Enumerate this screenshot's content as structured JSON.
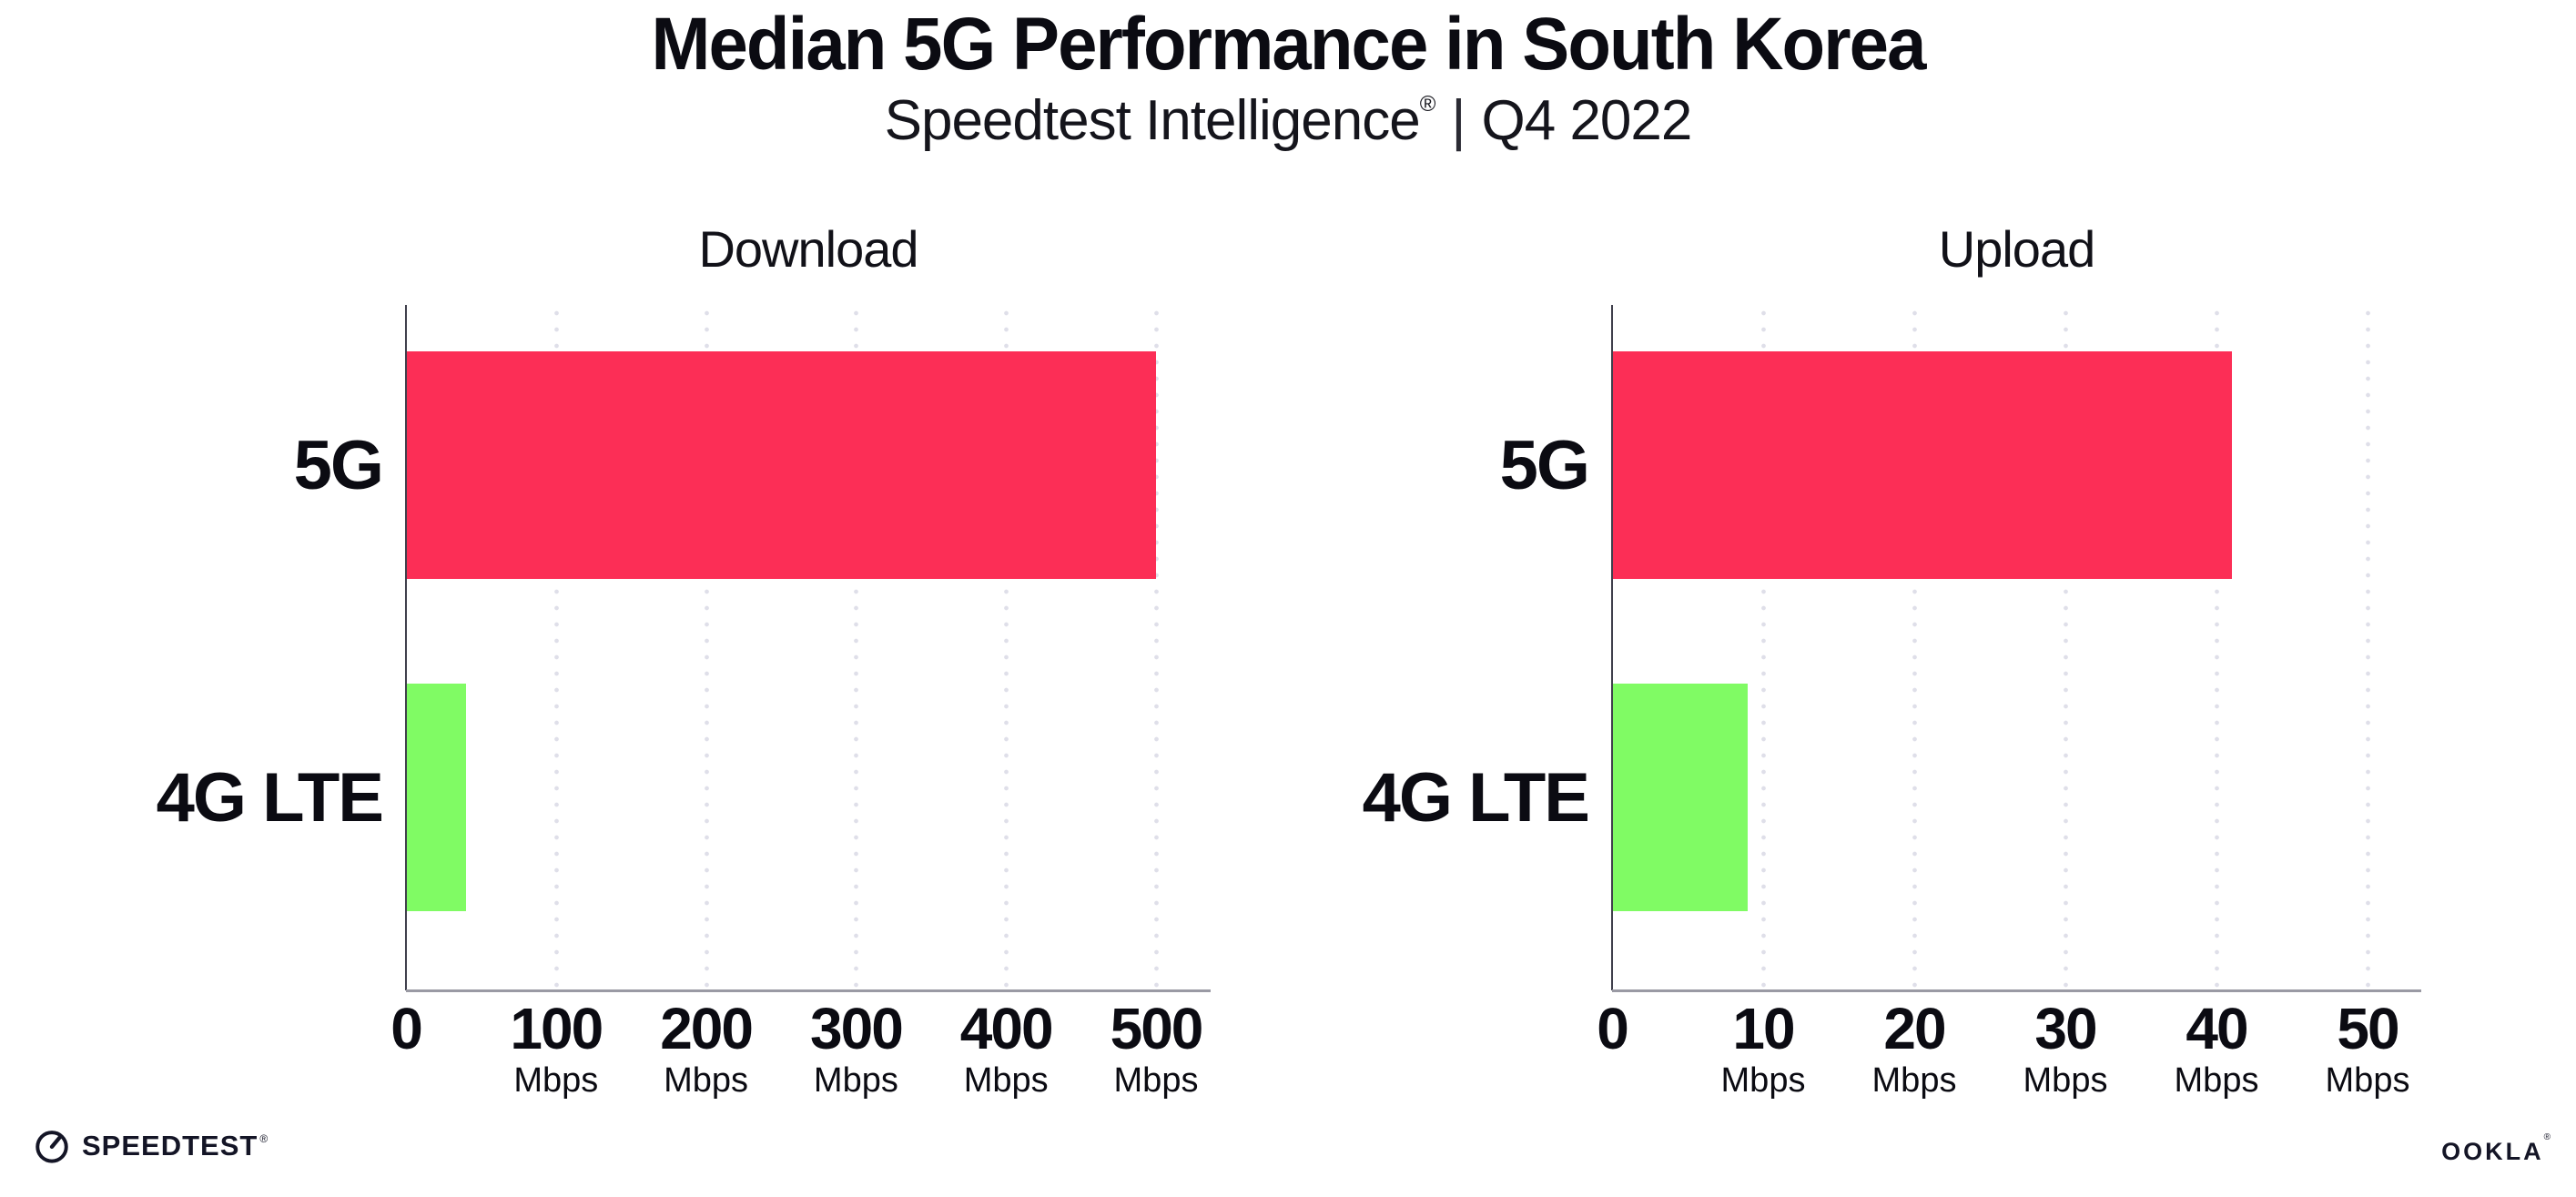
{
  "chart_data": {
    "type": "bar",
    "orientation": "horizontal",
    "title": "Median 5G Performance in South Korea",
    "subtitle": "Speedtest Intelligence® | Q4 2022",
    "subtitle_parts": {
      "brand": "Speedtest Intelligence",
      "registered": "®",
      "divider": "|",
      "period": "Q4 2022"
    },
    "categories": [
      "5G",
      "4G LTE"
    ],
    "bar_colors": [
      "#FC2E56",
      "#80FB64"
    ],
    "grid": "vertical-dotted",
    "legend": false,
    "panels": [
      {
        "title": "Download",
        "values": [
          500,
          40
        ],
        "xlim": [
          0,
          500
        ],
        "ticks": [
          0,
          100,
          200,
          300,
          400,
          500
        ],
        "tick_unit": "Mbps"
      },
      {
        "title": "Upload",
        "values": [
          41,
          9
        ],
        "xlim": [
          0,
          50
        ],
        "ticks": [
          0,
          10,
          20,
          30,
          40,
          50
        ],
        "tick_unit": "Mbps"
      }
    ]
  },
  "colors": {
    "bar_5g": "#FC2E56",
    "bar_4g_lte": "#80FB64",
    "grid_dot": "#DFDFE9",
    "axis_y": "#40404C",
    "axis_x": "#9A9AA4",
    "text": "#0B0B12",
    "logo": "#141526"
  },
  "footer": {
    "speedtest_label": "SPEEDTEST",
    "speedtest_mark": "®",
    "ookla_label": "OOKLA",
    "ookla_mark": "®"
  }
}
